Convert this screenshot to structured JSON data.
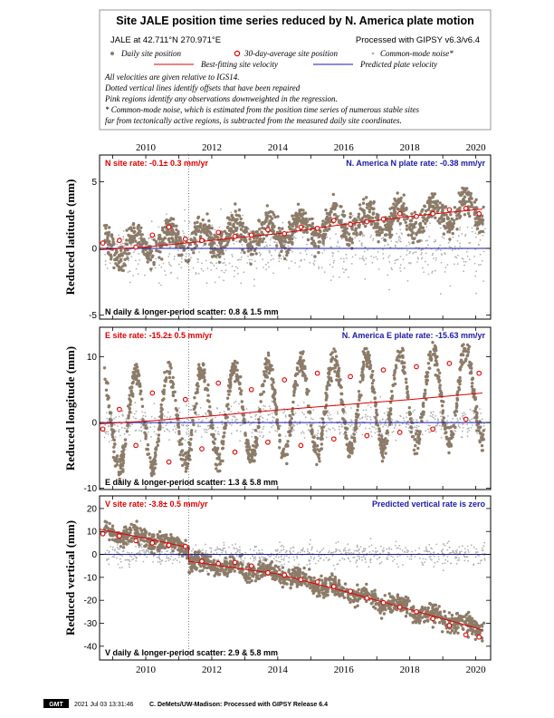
{
  "header": {
    "title": "Site JALE position time series reduced by N. America plate motion",
    "site_coords": "JALE at 42.711°N 270.971°E",
    "processed": "Processed with GIPSY v6.3/v6.4",
    "legend": {
      "daily": "Daily site position",
      "avg30": "30-day-average site position",
      "cmn": "Common-mode noise*",
      "best_fit": "Best-fitting site velocity",
      "predicted": "Predicted plate velocity"
    },
    "notes": [
      "All velocities are given relative to IGS14.",
      "Dotted vertical lines identify offsets that have been repaired",
      "Pink regions identify any observations downweighted in the regression.",
      "* Common-mode noise, which is estimated from the position time series of numerous stable sites",
      "far from tectonically active regions, is subtracted from the measured daily site coordinates."
    ]
  },
  "footer": {
    "logo": "GMT",
    "timestamp": "2021 Jul 03 13:31:46",
    "credit": "C. DeMets/UW-Madison: Processed with GIPSY Release 6.4"
  },
  "colors": {
    "daily": "#8c7b68",
    "cmn": "#b0b0b0",
    "fit": "#e00000",
    "predicted": "#1a1aa8"
  },
  "chart_data": [
    {
      "type": "scatter",
      "xlabel": "",
      "ylabel": "Reduced latitude (mm)",
      "xlim": [
        2008.6,
        2020.45
      ],
      "ylim": [
        -5.3,
        7.0
      ],
      "xticks": [
        2010,
        2012,
        2014,
        2016,
        2018,
        2020
      ],
      "yticks": [
        -5,
        0,
        5
      ],
      "offset_year": 2011.3,
      "site_rate_label": "N site rate:  -0.1± 0.3 mm/yr",
      "plate_rate_label": "N. America N plate rate:  -0.38 mm/yr",
      "scatter_label": "N daily & longer-period scatter:     0.8 &    1.5 mm",
      "best_fit": {
        "x": [
          2008.6,
          2010.0,
          2012.0,
          2014.0,
          2016.0,
          2018.0,
          2020.0,
          2020.2
        ],
        "y": [
          -0.1,
          0.1,
          0.6,
          1.1,
          1.8,
          2.4,
          2.9,
          2.95
        ]
      },
      "predicted_value": 0.0,
      "avg30": {
        "x": [
          2008.7,
          2009.2,
          2009.7,
          2010.2,
          2010.7,
          2011.2,
          2011.7,
          2012.2,
          2012.7,
          2013.2,
          2013.7,
          2014.2,
          2014.7,
          2015.2,
          2015.7,
          2016.2,
          2016.7,
          2017.2,
          2017.7,
          2018.2,
          2018.7,
          2019.2,
          2019.7,
          2020.1
        ],
        "y": [
          0.4,
          0.6,
          0.1,
          1.0,
          1.6,
          0.7,
          0.6,
          1.2,
          0.9,
          1.0,
          1.4,
          1.1,
          1.6,
          1.5,
          2.1,
          1.8,
          2.0,
          2.2,
          2.6,
          2.4,
          2.6,
          2.9,
          3.0,
          2.6
        ]
      },
      "daily_model": {
        "period": 1.0,
        "amp": 0.9,
        "noise": 0.8,
        "trend_from": 0.0,
        "trend_to": 2.9
      },
      "cmn_model": {
        "noise": 1.6,
        "trend_from": 0.0,
        "trend_to": 0.0
      }
    },
    {
      "type": "scatter",
      "xlabel": "",
      "ylabel": "Reduced longitude (mm)",
      "xlim": [
        2008.6,
        2020.45
      ],
      "ylim": [
        -10.2,
        14.5
      ],
      "xticks": [
        2010,
        2012,
        2014,
        2016,
        2018,
        2020
      ],
      "yticks": [
        -10,
        0,
        10
      ],
      "offset_year": 2011.3,
      "site_rate_label": "E site rate:  -15.2± 0.5 mm/yr",
      "plate_rate_label": "N. America E plate rate:  -15.63 mm/yr",
      "scatter_label": "E daily & longer-period scatter:    1.3 &    5.8 mm",
      "best_fit": {
        "x": [
          2008.6,
          2010.0,
          2012.0,
          2014.0,
          2016.0,
          2018.0,
          2020.0,
          2020.2
        ],
        "y": [
          -0.2,
          0.2,
          1.0,
          1.9,
          2.7,
          3.5,
          4.4,
          4.5
        ]
      },
      "predicted_value": 0.0,
      "avg30": {
        "x": [
          2008.7,
          2009.2,
          2009.7,
          2010.2,
          2010.7,
          2011.2,
          2011.7,
          2012.2,
          2012.7,
          2013.2,
          2013.7,
          2014.2,
          2014.7,
          2015.2,
          2015.7,
          2016.2,
          2016.7,
          2017.2,
          2017.7,
          2018.2,
          2018.7,
          2019.2,
          2019.7,
          2020.1
        ],
        "y": [
          -1.0,
          2.0,
          -3.5,
          4.5,
          -6.0,
          3.5,
          -4.0,
          6.0,
          -4.5,
          5.0,
          -3.0,
          6.5,
          -3.5,
          7.5,
          -2.5,
          7.0,
          -2.0,
          8.0,
          -1.5,
          8.5,
          -1.0,
          9.0,
          0.5,
          7.5
        ]
      },
      "daily_model": {
        "period": 1.0,
        "amp": 7.0,
        "noise": 1.3,
        "trend_from": -0.2,
        "trend_to": 4.5
      },
      "cmn_model": {
        "noise": 1.8,
        "trend_from": 0.0,
        "trend_to": 0.0
      }
    },
    {
      "type": "scatter",
      "xlabel": "",
      "ylabel": "Reduced vertical (mm)",
      "xlim": [
        2008.6,
        2020.45
      ],
      "ylim": [
        -46.0,
        25.5
      ],
      "xticks": [
        2010,
        2012,
        2014,
        2016,
        2018,
        2020
      ],
      "yticks": [
        -40,
        -30,
        -20,
        -10,
        0,
        10,
        20
      ],
      "offset_year": 2011.3,
      "site_rate_label": "V site rate:  -3.8± 0.5 mm/yr",
      "plate_rate_label": "Predicted vertical rate is zero",
      "scatter_label": "V daily & longer-period scatter:    2.9 &    5.8 mm",
      "best_fit": {
        "x": [
          2008.6,
          2010.0,
          2011.3,
          2011.3,
          2014.0,
          2016.0,
          2018.0,
          2020.0,
          2020.2
        ],
        "y": [
          11.0,
          7.0,
          3.0,
          -3.0,
          -8.5,
          -16.0,
          -24.0,
          -32.0,
          -33.0
        ]
      },
      "predicted_value": 0.0,
      "avg30": {
        "x": [
          2008.7,
          2009.2,
          2009.7,
          2010.2,
          2010.7,
          2011.2,
          2011.7,
          2012.2,
          2012.7,
          2013.2,
          2013.7,
          2014.2,
          2014.7,
          2015.2,
          2015.7,
          2016.2,
          2016.7,
          2017.2,
          2017.7,
          2018.2,
          2018.7,
          2019.2,
          2019.7,
          2020.1
        ],
        "y": [
          9.0,
          8.0,
          6.0,
          5.0,
          4.0,
          3.5,
          -3.0,
          -4.0,
          -3.5,
          -5.0,
          -8.0,
          -9.0,
          -11.0,
          -12.0,
          -14.0,
          -16.0,
          -19.0,
          -21.0,
          -23.0,
          -25.0,
          -28.0,
          -31.0,
          -35.0,
          -36.0
        ]
      },
      "daily_model": {
        "period": 1.0,
        "amp": 1.5,
        "noise": 2.9,
        "trend_from": 11.0,
        "trend_to": -33.0
      },
      "cmn_model": {
        "noise": 3.5,
        "trend_from": 0.0,
        "trend_to": 0.0
      }
    }
  ]
}
